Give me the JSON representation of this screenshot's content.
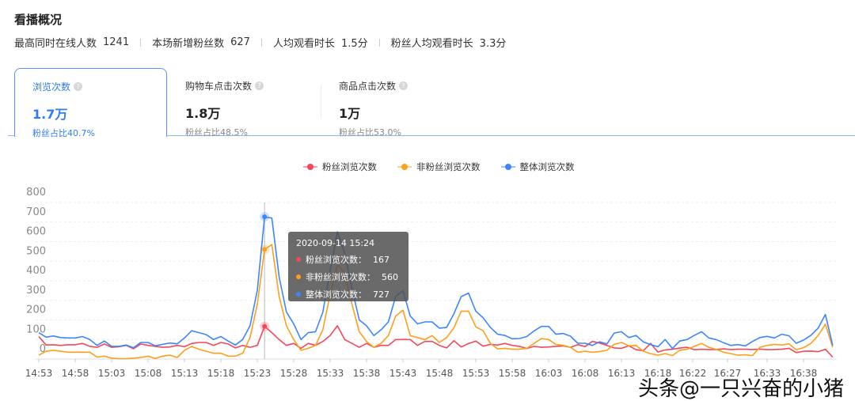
{
  "header": {
    "title": "看播概况"
  },
  "stats": [
    {
      "label": "最高同时在线人数",
      "value": "1241"
    },
    {
      "label": "本场新增粉丝数",
      "value": "627"
    },
    {
      "label": "人均观看时长",
      "value": "1.5分"
    },
    {
      "label": "粉丝人均观看时长",
      "value": "3.3分"
    }
  ],
  "tabs": [
    {
      "label": "浏览次数",
      "value": "1.7万",
      "sub": "粉丝占比40.7%",
      "active": true
    },
    {
      "label": "购物车点击次数",
      "value": "1.8万",
      "sub": "粉丝占比48.5%"
    },
    {
      "label": "商品点击次数",
      "value": "1万",
      "sub": "粉丝占比53.0%"
    }
  ],
  "help_icon": "question-circle-icon",
  "tooltip": {
    "title": "2020-09-14 15:24",
    "rows": [
      {
        "label": "粉丝浏览次数：",
        "value": "167"
      },
      {
        "label": "非粉丝浏览次数：",
        "value": "560"
      },
      {
        "label": "整体浏览次数：",
        "value": "727"
      }
    ]
  },
  "watermark": "头条@一只兴奋的小猪",
  "chart_data": {
    "type": "line",
    "start_time": "14:53",
    "end_time": "16:42",
    "interval_minutes": 1,
    "ylim": [
      0,
      800
    ],
    "yticks": [
      0,
      100,
      200,
      300,
      400,
      500,
      600,
      700,
      800
    ],
    "xtick_labels": [
      "14:53",
      "14:58",
      "15:03",
      "15:08",
      "15:13",
      "15:18",
      "15:23",
      "15:28",
      "15:33",
      "15:38",
      "15:43",
      "15:48",
      "15:53",
      "15:58",
      "16:03",
      "16:08",
      "16:13",
      "16:18",
      "16:22",
      "16:27",
      "16:33",
      "16:38"
    ],
    "grid": true,
    "legend_placement": "top",
    "highlight_time": "15:24",
    "series": [
      {
        "name": "粉丝浏览次数",
        "color": "#f5475b",
        "values": [
          115,
          72,
          73,
          70,
          73,
          73,
          80,
          65,
          60,
          77,
          60,
          63,
          70,
          53,
          77,
          70,
          65,
          60,
          62,
          70,
          63,
          80,
          85,
          85,
          70,
          85,
          77,
          57,
          70,
          60,
          70,
          167,
          135,
          100,
          70,
          80,
          55,
          80,
          70,
          90,
          120,
          170,
          100,
          80,
          60,
          80,
          60,
          70,
          70,
          100,
          100,
          100,
          70,
          90,
          90,
          70,
          57,
          94,
          62,
          79,
          92,
          66,
          75,
          72,
          80,
          70,
          65,
          54,
          65,
          60,
          62,
          65,
          67,
          60,
          74,
          64,
          90,
          82,
          70,
          57,
          55,
          68,
          48,
          43,
          80,
          36,
          47,
          50,
          56,
          60,
          48,
          50,
          49,
          49,
          52,
          49,
          50,
          50,
          49,
          51,
          48,
          49,
          50,
          55,
          33,
          40,
          41,
          38,
          50,
          10
        ]
      },
      {
        "name": "非粉丝浏览次数",
        "color": "#ff9f1a",
        "values": [
          20,
          40,
          45,
          40,
          35,
          35,
          35,
          35,
          10,
          15,
          5,
          2,
          2,
          5,
          8,
          15,
          3,
          15,
          20,
          8,
          45,
          65,
          50,
          40,
          30,
          30,
          15,
          15,
          30,
          110,
          280,
          560,
          585,
          320,
          170,
          100,
          45,
          55,
          70,
          150,
          330,
          480,
          440,
          280,
          140,
          90,
          60,
          80,
          120,
          220,
          250,
          120,
          110,
          100,
          120,
          85,
          110,
          160,
          245,
          245,
          165,
          145,
          80,
          52,
          55,
          50,
          50,
          55,
          80,
          105,
          100,
          75,
          70,
          60,
          35,
          40,
          35,
          38,
          45,
          75,
          85,
          68,
          70,
          40,
          28,
          20,
          28,
          18,
          45,
          50,
          65,
          80,
          60,
          50,
          35,
          28,
          20,
          22,
          18,
          60,
          70,
          75,
          72,
          78,
          48,
          58,
          80,
          120,
          178,
          60
        ]
      },
      {
        "name": "整体浏览次数",
        "color": "#3b86ff",
        "values": [
          135,
          112,
          118,
          110,
          108,
          108,
          115,
          100,
          70,
          92,
          65,
          65,
          72,
          58,
          85,
          85,
          68,
          75,
          82,
          78,
          108,
          145,
          135,
          125,
          100,
          115,
          92,
          72,
          100,
          170,
          350,
          727,
          720,
          420,
          240,
          180,
          100,
          135,
          140,
          240,
          450,
          650,
          540,
          360,
          200,
          170,
          120,
          150,
          190,
          320,
          350,
          220,
          180,
          190,
          190,
          158,
          162,
          232,
          319,
          337,
          245,
          211,
          162,
          127,
          121,
          104,
          105,
          115,
          144,
          167,
          167,
          127,
          131,
          117,
          81,
          81,
          70,
          88,
          77,
          133,
          140,
          110,
          121,
          88,
          74,
          63,
          100,
          54,
          92,
          100,
          121,
          140,
          108,
          100,
          84,
          70,
          74,
          67,
          90,
          110,
          116,
          108,
          127,
          119,
          81,
          97,
          121,
          158,
          228,
          70
        ]
      }
    ]
  }
}
